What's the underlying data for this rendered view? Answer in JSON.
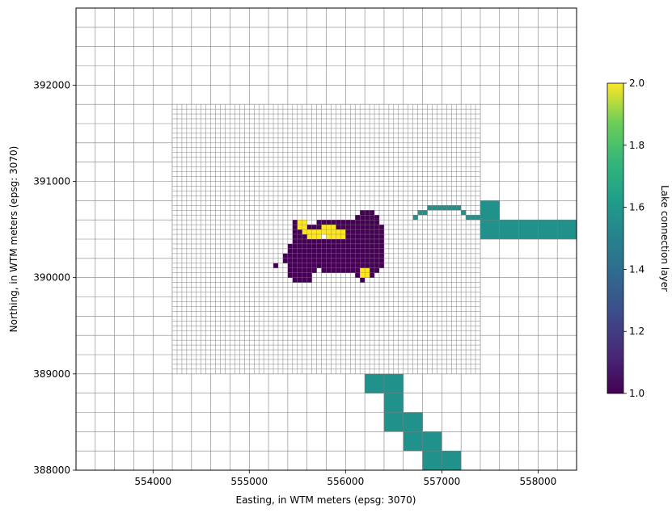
{
  "chart_data": {
    "type": "heatmap",
    "title": "",
    "xlabel": "Easting, in WTM meters (epsg: 3070)",
    "ylabel": "Northing, in WTM meters (epsg: 3070)",
    "xlim": [
      553200,
      558400
    ],
    "ylim": [
      388000,
      392800
    ],
    "x_ticks": [
      554000,
      555000,
      556000,
      557000,
      558000
    ],
    "y_ticks": [
      388000,
      389000,
      390000,
      391000,
      392000
    ],
    "grid": {
      "coarse_cell_size": 200,
      "refined_cell_size": 50,
      "refined_x_range": [
        554200,
        557400
      ],
      "refined_y_range": [
        389000,
        391800
      ],
      "line_color": "#808080"
    },
    "colorbar": {
      "label": "Lake connection layer",
      "min": 1.0,
      "max": 2.0,
      "ticks": [
        "1.0",
        "1.2",
        "1.4",
        "1.6",
        "1.8",
        "2.0"
      ],
      "colormap": "viridis"
    },
    "series": [
      {
        "value": 1,
        "color": "#440154",
        "cell_size": 50,
        "cells_x_y": [
          [
            556150,
            390650
          ],
          [
            556200,
            390650
          ],
          [
            556250,
            390650
          ],
          [
            556100,
            390600
          ],
          [
            556150,
            390600
          ],
          [
            556200,
            390600
          ],
          [
            556250,
            390600
          ],
          [
            556300,
            390600
          ],
          [
            555450,
            390550
          ],
          [
            555700,
            390550
          ],
          [
            555750,
            390550
          ],
          [
            555800,
            390550
          ],
          [
            555850,
            390550
          ],
          [
            555900,
            390550
          ],
          [
            555950,
            390550
          ],
          [
            556000,
            390550
          ],
          [
            556050,
            390550
          ],
          [
            556100,
            390550
          ],
          [
            556150,
            390550
          ],
          [
            556200,
            390550
          ],
          [
            556250,
            390550
          ],
          [
            556300,
            390550
          ],
          [
            555450,
            390500
          ],
          [
            555600,
            390500
          ],
          [
            555650,
            390500
          ],
          [
            555700,
            390500
          ],
          [
            555900,
            390500
          ],
          [
            555950,
            390500
          ],
          [
            556000,
            390500
          ],
          [
            556050,
            390500
          ],
          [
            556100,
            390500
          ],
          [
            556150,
            390500
          ],
          [
            556200,
            390500
          ],
          [
            556250,
            390500
          ],
          [
            556300,
            390500
          ],
          [
            556350,
            390500
          ],
          [
            555450,
            390450
          ],
          [
            555500,
            390450
          ],
          [
            556000,
            390450
          ],
          [
            556050,
            390450
          ],
          [
            556100,
            390450
          ],
          [
            556150,
            390450
          ],
          [
            556200,
            390450
          ],
          [
            556250,
            390450
          ],
          [
            556300,
            390450
          ],
          [
            556350,
            390450
          ],
          [
            555450,
            390400
          ],
          [
            555500,
            390400
          ],
          [
            555550,
            390400
          ],
          [
            556000,
            390400
          ],
          [
            556050,
            390400
          ],
          [
            556100,
            390400
          ],
          [
            556150,
            390400
          ],
          [
            556200,
            390400
          ],
          [
            556250,
            390400
          ],
          [
            556300,
            390400
          ],
          [
            556350,
            390400
          ],
          [
            555450,
            390350
          ],
          [
            555500,
            390350
          ],
          [
            555550,
            390350
          ],
          [
            555600,
            390350
          ],
          [
            555650,
            390350
          ],
          [
            555700,
            390350
          ],
          [
            555750,
            390350
          ],
          [
            555800,
            390350
          ],
          [
            555850,
            390350
          ],
          [
            555900,
            390350
          ],
          [
            555950,
            390350
          ],
          [
            556000,
            390350
          ],
          [
            556050,
            390350
          ],
          [
            556100,
            390350
          ],
          [
            556150,
            390350
          ],
          [
            556200,
            390350
          ],
          [
            556250,
            390350
          ],
          [
            556300,
            390350
          ],
          [
            556350,
            390350
          ],
          [
            555400,
            390300
          ],
          [
            555450,
            390300
          ],
          [
            555500,
            390300
          ],
          [
            555550,
            390300
          ],
          [
            555600,
            390300
          ],
          [
            555650,
            390300
          ],
          [
            555700,
            390300
          ],
          [
            555750,
            390300
          ],
          [
            555800,
            390300
          ],
          [
            555850,
            390300
          ],
          [
            555900,
            390300
          ],
          [
            555950,
            390300
          ],
          [
            556000,
            390300
          ],
          [
            556050,
            390300
          ],
          [
            556100,
            390300
          ],
          [
            556150,
            390300
          ],
          [
            556200,
            390300
          ],
          [
            556250,
            390300
          ],
          [
            556300,
            390300
          ],
          [
            556350,
            390300
          ],
          [
            555400,
            390250
          ],
          [
            555450,
            390250
          ],
          [
            555500,
            390250
          ],
          [
            555550,
            390250
          ],
          [
            555600,
            390250
          ],
          [
            555650,
            390250
          ],
          [
            555700,
            390250
          ],
          [
            555750,
            390250
          ],
          [
            555800,
            390250
          ],
          [
            555850,
            390250
          ],
          [
            555900,
            390250
          ],
          [
            555950,
            390250
          ],
          [
            556000,
            390250
          ],
          [
            556050,
            390250
          ],
          [
            556100,
            390250
          ],
          [
            556150,
            390250
          ],
          [
            556200,
            390250
          ],
          [
            556250,
            390250
          ],
          [
            556300,
            390250
          ],
          [
            556350,
            390250
          ],
          [
            555350,
            390200
          ],
          [
            555400,
            390200
          ],
          [
            555450,
            390200
          ],
          [
            555500,
            390200
          ],
          [
            555550,
            390200
          ],
          [
            555600,
            390200
          ],
          [
            555650,
            390200
          ],
          [
            555700,
            390200
          ],
          [
            555750,
            390200
          ],
          [
            555800,
            390200
          ],
          [
            555850,
            390200
          ],
          [
            555900,
            390200
          ],
          [
            555950,
            390200
          ],
          [
            556000,
            390200
          ],
          [
            556050,
            390200
          ],
          [
            556100,
            390200
          ],
          [
            556150,
            390200
          ],
          [
            556200,
            390200
          ],
          [
            556250,
            390200
          ],
          [
            556300,
            390200
          ],
          [
            556350,
            390200
          ],
          [
            555350,
            390150
          ],
          [
            555400,
            390150
          ],
          [
            555450,
            390150
          ],
          [
            555500,
            390150
          ],
          [
            555550,
            390150
          ],
          [
            555600,
            390150
          ],
          [
            555650,
            390150
          ],
          [
            555700,
            390150
          ],
          [
            555750,
            390150
          ],
          [
            555800,
            390150
          ],
          [
            555850,
            390150
          ],
          [
            555900,
            390150
          ],
          [
            555950,
            390150
          ],
          [
            556000,
            390150
          ],
          [
            556050,
            390150
          ],
          [
            556100,
            390150
          ],
          [
            556150,
            390150
          ],
          [
            556200,
            390150
          ],
          [
            556250,
            390150
          ],
          [
            556300,
            390150
          ],
          [
            556350,
            390150
          ],
          [
            555250,
            390100
          ],
          [
            555400,
            390100
          ],
          [
            555450,
            390100
          ],
          [
            555500,
            390100
          ],
          [
            555550,
            390100
          ],
          [
            555600,
            390100
          ],
          [
            555650,
            390100
          ],
          [
            555700,
            390100
          ],
          [
            555750,
            390100
          ],
          [
            555800,
            390100
          ],
          [
            555850,
            390100
          ],
          [
            555900,
            390100
          ],
          [
            555950,
            390100
          ],
          [
            556000,
            390100
          ],
          [
            556050,
            390100
          ],
          [
            556100,
            390100
          ],
          [
            556150,
            390100
          ],
          [
            556200,
            390100
          ],
          [
            556250,
            390100
          ],
          [
            556300,
            390100
          ],
          [
            556350,
            390100
          ],
          [
            555400,
            390050
          ],
          [
            555450,
            390050
          ],
          [
            555500,
            390050
          ],
          [
            555550,
            390050
          ],
          [
            555600,
            390050
          ],
          [
            555650,
            390050
          ],
          [
            555750,
            390050
          ],
          [
            555800,
            390050
          ],
          [
            555850,
            390050
          ],
          [
            555900,
            390050
          ],
          [
            555950,
            390050
          ],
          [
            556000,
            390050
          ],
          [
            556050,
            390050
          ],
          [
            556100,
            390050
          ],
          [
            556250,
            390050
          ],
          [
            556300,
            390050
          ],
          [
            555400,
            390000
          ],
          [
            555450,
            390000
          ],
          [
            555500,
            390000
          ],
          [
            555550,
            390000
          ],
          [
            555600,
            390000
          ],
          [
            556100,
            390000
          ],
          [
            556250,
            390000
          ],
          [
            555450,
            389950
          ],
          [
            555500,
            389950
          ],
          [
            555550,
            389950
          ],
          [
            555600,
            389950
          ],
          [
            556150,
            389950
          ]
        ]
      },
      {
        "value": 2,
        "color": "#fde725",
        "cell_size": 50,
        "cells_x_y": [
          [
            555500,
            390550
          ],
          [
            555550,
            390550
          ],
          [
            555500,
            390500
          ],
          [
            555550,
            390500
          ],
          [
            555750,
            390500
          ],
          [
            555800,
            390500
          ],
          [
            555850,
            390500
          ],
          [
            555550,
            390450
          ],
          [
            555600,
            390450
          ],
          [
            555650,
            390450
          ],
          [
            555700,
            390450
          ],
          [
            555750,
            390450
          ],
          [
            555800,
            390450
          ],
          [
            555850,
            390450
          ],
          [
            555900,
            390450
          ],
          [
            555950,
            390450
          ],
          [
            555600,
            390400
          ],
          [
            555650,
            390400
          ],
          [
            555700,
            390400
          ],
          [
            555800,
            390400
          ],
          [
            555850,
            390400
          ],
          [
            555900,
            390400
          ],
          [
            555950,
            390400
          ],
          [
            556150,
            390050
          ],
          [
            556200,
            390050
          ],
          [
            556200,
            390000
          ],
          [
            556150,
            390000
          ]
        ]
      },
      {
        "value": 1.5,
        "color": "#21918c",
        "cells_x_y_size": [
          [
            556350,
            388950,
            50
          ],
          [
            556200,
            388800,
            200
          ],
          [
            556400,
            388800,
            200
          ],
          [
            556400,
            388600,
            200
          ],
          [
            556400,
            388400,
            200
          ],
          [
            556600,
            388400,
            200
          ],
          [
            556600,
            388200,
            200
          ],
          [
            556800,
            388200,
            200
          ],
          [
            556800,
            388000,
            200
          ],
          [
            557000,
            388000,
            200
          ],
          [
            557400,
            390600,
            200
          ],
          [
            557400,
            390400,
            200
          ],
          [
            557600,
            390400,
            200
          ],
          [
            557800,
            390400,
            200
          ],
          [
            558000,
            390400,
            200
          ],
          [
            558200,
            390400,
            200
          ],
          [
            556700,
            390600,
            50
          ],
          [
            556750,
            390650,
            50
          ],
          [
            556800,
            390650,
            50
          ],
          [
            556850,
            390700,
            50
          ],
          [
            556900,
            390700,
            50
          ],
          [
            556950,
            390700,
            50
          ],
          [
            557000,
            390700,
            50
          ],
          [
            557050,
            390700,
            50
          ],
          [
            557100,
            390700,
            50
          ],
          [
            557150,
            390700,
            50
          ],
          [
            557200,
            390650,
            50
          ],
          [
            557250,
            390600,
            50
          ],
          [
            557300,
            390600,
            50
          ],
          [
            557350,
            390600,
            50
          ]
        ]
      }
    ]
  }
}
